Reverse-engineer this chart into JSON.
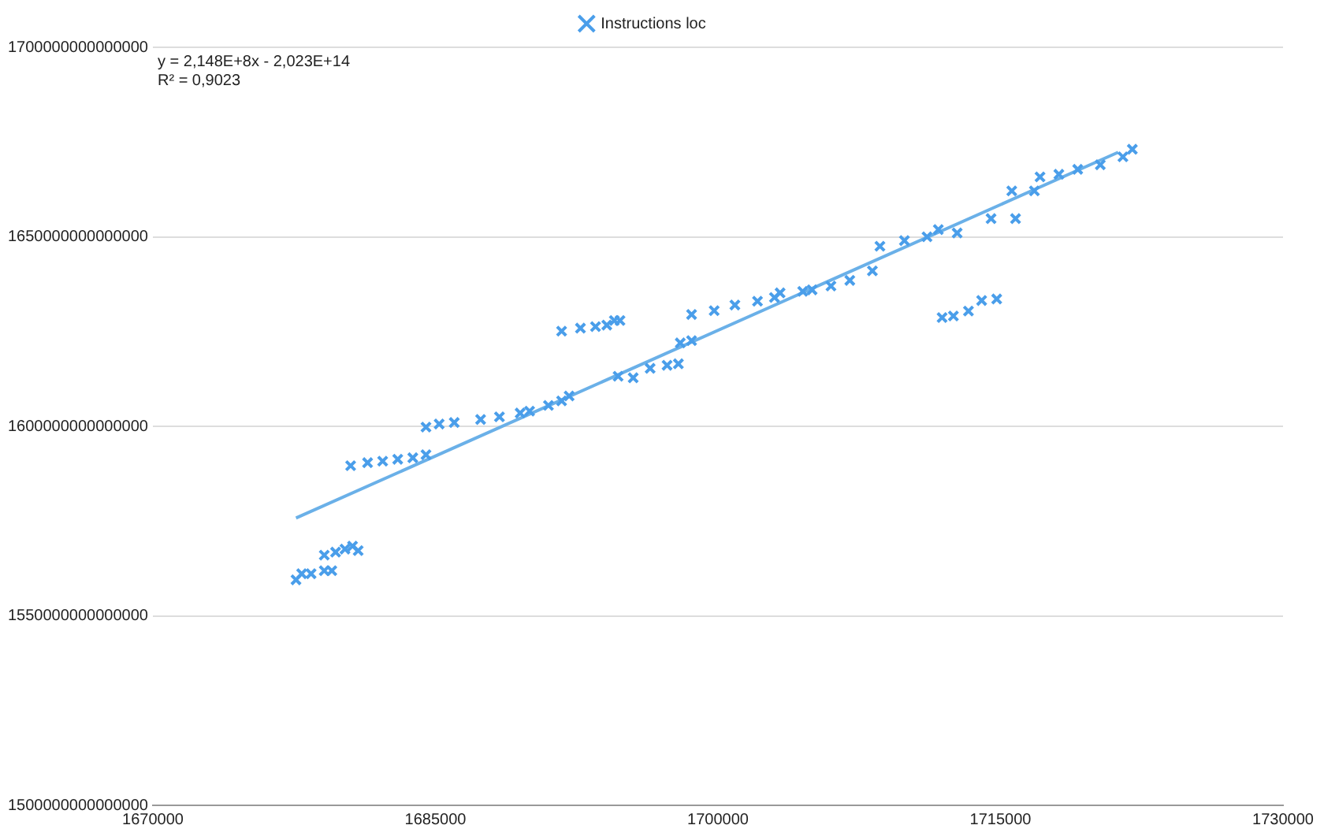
{
  "chart_data": {
    "type": "scatter",
    "xlim": [
      1670000,
      1730000
    ],
    "xticks": [
      1670000,
      1685000,
      1700000,
      1715000,
      1730000
    ],
    "ylim": [
      1500000000000000,
      1700000000000000
    ],
    "yticks": [
      1500000000000000,
      1550000000000000,
      1600000000000000,
      1650000000000000,
      1700000000000000
    ],
    "grid": "y",
    "legend": "top",
    "annotations": [
      "y = 2,148E+8x - 2,023E+14",
      "R² = 0,9023"
    ],
    "series": [
      {
        "name": "Instructions loc",
        "color": "#4a9eea",
        "marker": "cross",
        "x": [
          1677600,
          1677900,
          1678400,
          1679100,
          1679500,
          1679100,
          1679700,
          1680200,
          1680600,
          1680900,
          1680500,
          1681400,
          1682200,
          1683000,
          1683800,
          1684500,
          1684500,
          1685200,
          1686000,
          1687400,
          1688400,
          1689500,
          1690000,
          1691000,
          1691700,
          1692100,
          1694700,
          1695500,
          1696400,
          1697300,
          1697900,
          1691700,
          1692700,
          1693500,
          1694100,
          1694500,
          1694800,
          1698000,
          1698600,
          1698600,
          1699800,
          1700900,
          1702100,
          1703000,
          1703300,
          1704500,
          1705000,
          1706000,
          1707000,
          1708200,
          1708600,
          1709900,
          1711100,
          1711700,
          1712700,
          1711900,
          1712500,
          1713300,
          1714000,
          1714800,
          1714500,
          1715800,
          1715600,
          1716800,
          1717100,
          1718100,
          1719100,
          1720300,
          1721500,
          1722000
        ],
        "values": [
          1559500000000000,
          1561100000000000,
          1561100000000000,
          1561900000000000,
          1561900000000000,
          1566000000000000,
          1566800000000000,
          1567600000000000,
          1568400000000000,
          1567200000000000,
          1589600000000000,
          1590400000000000,
          1590800000000000,
          1591300000000000,
          1591700000000000,
          1592500000000000,
          1599800000000000,
          1600600000000000,
          1601000000000000,
          1601800000000000,
          1602500000000000,
          1603500000000000,
          1604000000000000,
          1605500000000000,
          1606700000000000,
          1608000000000000,
          1613200000000000,
          1612800000000000,
          1615300000000000,
          1616100000000000,
          1616500000000000,
          1625100000000000,
          1625900000000000,
          1626300000000000,
          1626700000000000,
          1627900000000000,
          1627900000000000,
          1622000000000000,
          1622600000000000,
          1629500000000000,
          1630500000000000,
          1632000000000000,
          1633000000000000,
          1634000000000000,
          1635200000000000,
          1635600000000000,
          1636000000000000,
          1637000000000000,
          1638500000000000,
          1641000000000000,
          1647500000000000,
          1649000000000000,
          1650000000000000,
          1651900000000000,
          1651000000000000,
          1628700000000000,
          1629100000000000,
          1630400000000000,
          1633200000000000,
          1633600000000000,
          1654800000000000,
          1654800000000000,
          1662100000000000,
          1662100000000000,
          1665800000000000,
          1666500000000000,
          1667800000000000,
          1669000000000000,
          1671100000000000,
          1673100000000000
        ]
      },
      {
        "type": "line",
        "color": "#6ab0e8",
        "marker": "none",
        "x": [
          1677600,
          1721250
        ],
        "values": [
          1575800000000000,
          1672300000000000
        ]
      }
    ]
  }
}
